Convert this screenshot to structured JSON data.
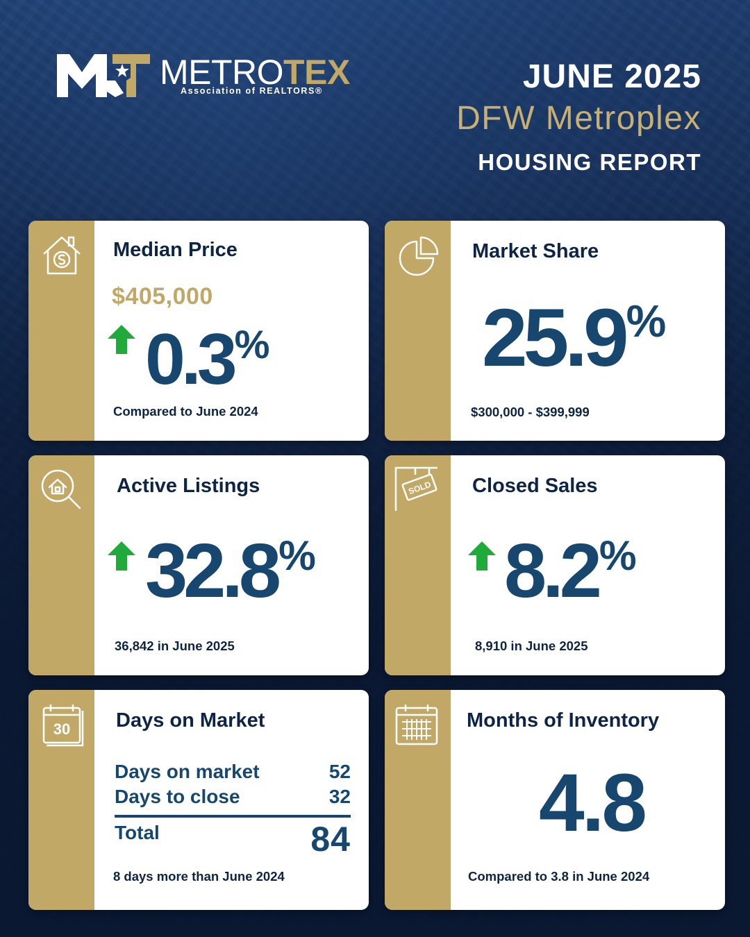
{
  "brand": {
    "name_white": "METRO",
    "name_gold": "TEX",
    "subtitle": "Association of REALTORS®",
    "colors": {
      "navy": "#0d2445",
      "blue": "#17466f",
      "gold": "#c2a866",
      "green": "#1faa3a"
    }
  },
  "header": {
    "month": "JUNE 2025",
    "region": "DFW Metroplex",
    "report": "HOUSING REPORT"
  },
  "cards": {
    "median_price": {
      "icon": "house-dollar-icon",
      "title": "Median Price",
      "price": "$405,000",
      "trend": "up",
      "change_value": "0.3",
      "change_unit": "%",
      "footnote": "Compared to June 2024"
    },
    "market_share": {
      "icon": "pie-chart-icon",
      "title": "Market Share",
      "value": "25.9",
      "unit": "%",
      "footnote": "$300,000 - $399,999"
    },
    "active_listings": {
      "icon": "house-search-icon",
      "title": "Active Listings",
      "trend": "up",
      "change_value": "32.8",
      "change_unit": "%",
      "footnote": "36,842 in June 2025"
    },
    "closed_sales": {
      "icon": "sold-sign-icon",
      "title": "Closed Sales",
      "trend": "up",
      "change_value": "8.2",
      "change_unit": "%",
      "footnote": "8,910 in June 2025"
    },
    "days_on_market": {
      "icon": "calendar-30-icon",
      "icon_text": "30",
      "title": "Days on Market",
      "rows": [
        {
          "label": "Days on market",
          "value": "52"
        },
        {
          "label": "Days to close",
          "value": "32"
        }
      ],
      "total_label": "Total",
      "total_value": "84",
      "footnote": "8 days more than June 2024"
    },
    "months_inventory": {
      "icon": "calendar-grid-icon",
      "title": "Months of Inventory",
      "value": "4.8",
      "footnote": "Compared to 3.8 in June 2024"
    }
  }
}
